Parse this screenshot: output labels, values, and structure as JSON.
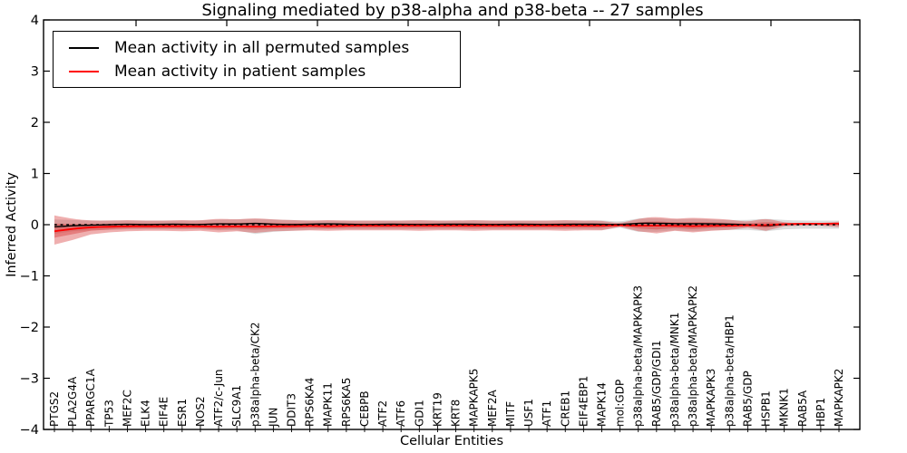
{
  "figure": {
    "title": "Signaling mediated by p38-alpha and p38-beta -- 27 samples"
  },
  "legend": {
    "items": [
      {
        "label": "Mean activity in all permuted samples",
        "color": "#000000"
      },
      {
        "label": "Mean activity in patient samples",
        "color": "#ff0000"
      }
    ],
    "position": "upper left"
  },
  "chart_data": {
    "type": "line",
    "title": "Signaling mediated by p38-alpha and p38-beta -- 27 samples",
    "xlabel": "Cellular Entities",
    "ylabel": "Inferred Activity",
    "ylim": [
      -4,
      4
    ],
    "yticks": [
      -4,
      -3,
      -2,
      -1,
      0,
      1,
      2,
      3,
      4
    ],
    "grid": false,
    "legend_position": "upper left",
    "categories": [
      "PTGS2",
      "PLA2G4A",
      "PPARGC1A",
      "TP53",
      "MEF2C",
      "ELK4",
      "EIF4E",
      "ESR1",
      "NOS2",
      "ATF2/c-Jun",
      "SLC9A1",
      "p38alpha-beta/CK2",
      "JUN",
      "DDIT3",
      "RPS6KA4",
      "MAPK11",
      "RPS6KA5",
      "CEBPB",
      "ATF2",
      "ATF6",
      "GDI1",
      "KRT19",
      "KRT8",
      "MAPKAPK5",
      "MEF2A",
      "MITF",
      "USF1",
      "ATF1",
      "CREB1",
      "EIF4EBP1",
      "MAPK14",
      "mol:GDP",
      "p38alpha-beta/MAPKAPK3",
      "RAB5/GDP/GDI1",
      "p38alpha-beta/MNK1",
      "p38alpha-beta/MAPKAPK2",
      "MAPKAPK3",
      "p38alpha-beta/HBP1",
      "RAB5/GDP",
      "HSPB1",
      "MKNK1",
      "RAB5A",
      "HBP1",
      "MAPKAPK2"
    ],
    "series": [
      {
        "name": "Mean activity in all permuted samples",
        "color": "#000000",
        "style": "solid",
        "values": [
          -0.04,
          -0.02,
          -0.01,
          0.0,
          0.01,
          0.0,
          0.01,
          0.01,
          0.0,
          0.02,
          0.01,
          0.03,
          0.01,
          0.0,
          0.01,
          0.02,
          0.01,
          0.0,
          0.01,
          0.01,
          0.0,
          0.01,
          0.01,
          0.01,
          0.0,
          0.01,
          0.01,
          0.0,
          0.01,
          0.01,
          0.01,
          0.0,
          0.03,
          0.03,
          0.02,
          0.02,
          0.02,
          0.01,
          0.0,
          -0.03,
          0.01,
          0.02,
          0.02,
          0.02
        ]
      },
      {
        "name": "Mean activity in patient samples",
        "color": "#ff0000",
        "style": "solid",
        "values": [
          -0.13,
          -0.08,
          -0.05,
          -0.04,
          -0.03,
          -0.03,
          -0.03,
          -0.03,
          -0.03,
          -0.04,
          -0.03,
          -0.04,
          -0.03,
          -0.03,
          -0.02,
          -0.03,
          -0.02,
          -0.02,
          -0.02,
          -0.02,
          -0.02,
          -0.02,
          -0.02,
          -0.02,
          -0.02,
          -0.02,
          -0.02,
          -0.02,
          -0.02,
          -0.02,
          -0.02,
          -0.01,
          -0.02,
          -0.02,
          -0.02,
          -0.03,
          -0.02,
          -0.02,
          -0.01,
          -0.01,
          0.01,
          0.02,
          0.02,
          0.02
        ]
      }
    ],
    "bands": [
      {
        "name": "permuted-activity-range",
        "color": "#bfbfbf",
        "opacity": 0.55,
        "upper": [
          0.1,
          0.09,
          0.08,
          0.08,
          0.08,
          0.08,
          0.08,
          0.08,
          0.08,
          0.1,
          0.1,
          0.12,
          0.1,
          0.09,
          0.08,
          0.08,
          0.08,
          0.08,
          0.08,
          0.08,
          0.08,
          0.08,
          0.08,
          0.08,
          0.08,
          0.08,
          0.08,
          0.08,
          0.08,
          0.08,
          0.09,
          0.05,
          0.13,
          0.13,
          0.1,
          0.12,
          0.1,
          0.09,
          0.09,
          0.12,
          0.09,
          0.08,
          0.08,
          0.08
        ],
        "lower": [
          -0.18,
          -0.13,
          -0.11,
          -0.1,
          -0.09,
          -0.09,
          -0.09,
          -0.09,
          -0.09,
          -0.11,
          -0.11,
          -0.18,
          -0.14,
          -0.12,
          -0.1,
          -0.09,
          -0.09,
          -0.09,
          -0.09,
          -0.09,
          -0.09,
          -0.09,
          -0.09,
          -0.09,
          -0.09,
          -0.09,
          -0.09,
          -0.09,
          -0.09,
          -0.09,
          -0.1,
          -0.06,
          -0.14,
          -0.14,
          -0.11,
          -0.13,
          -0.11,
          -0.1,
          -0.1,
          -0.13,
          -0.09,
          -0.08,
          -0.08,
          -0.08
        ]
      },
      {
        "name": "patient-activity-range",
        "color": "#d94040",
        "opacity": 0.42,
        "upper": [
          0.18,
          0.11,
          0.08,
          0.08,
          0.09,
          0.08,
          0.08,
          0.09,
          0.08,
          0.12,
          0.1,
          0.13,
          0.1,
          0.09,
          0.08,
          0.09,
          0.08,
          0.08,
          0.08,
          0.08,
          0.09,
          0.08,
          0.08,
          0.09,
          0.08,
          0.08,
          0.08,
          0.08,
          0.09,
          0.08,
          0.08,
          0.02,
          0.12,
          0.16,
          0.11,
          0.14,
          0.12,
          0.1,
          0.05,
          0.13,
          0.04,
          0.03,
          0.03,
          0.06
        ],
        "lower": [
          -0.39,
          -0.3,
          -0.19,
          -0.15,
          -0.13,
          -0.12,
          -0.12,
          -0.13,
          -0.12,
          -0.15,
          -0.13,
          -0.16,
          -0.13,
          -0.12,
          -0.11,
          -0.12,
          -0.11,
          -0.11,
          -0.11,
          -0.11,
          -0.12,
          -0.11,
          -0.11,
          -0.12,
          -0.11,
          -0.11,
          -0.11,
          -0.11,
          -0.12,
          -0.11,
          -0.11,
          -0.04,
          -0.13,
          -0.17,
          -0.12,
          -0.15,
          -0.12,
          -0.1,
          -0.06,
          -0.12,
          -0.03,
          -0.02,
          -0.02,
          -0.05
        ]
      }
    ],
    "zero_line": {
      "value": 0,
      "style": "dotted",
      "color": "#000000"
    }
  }
}
